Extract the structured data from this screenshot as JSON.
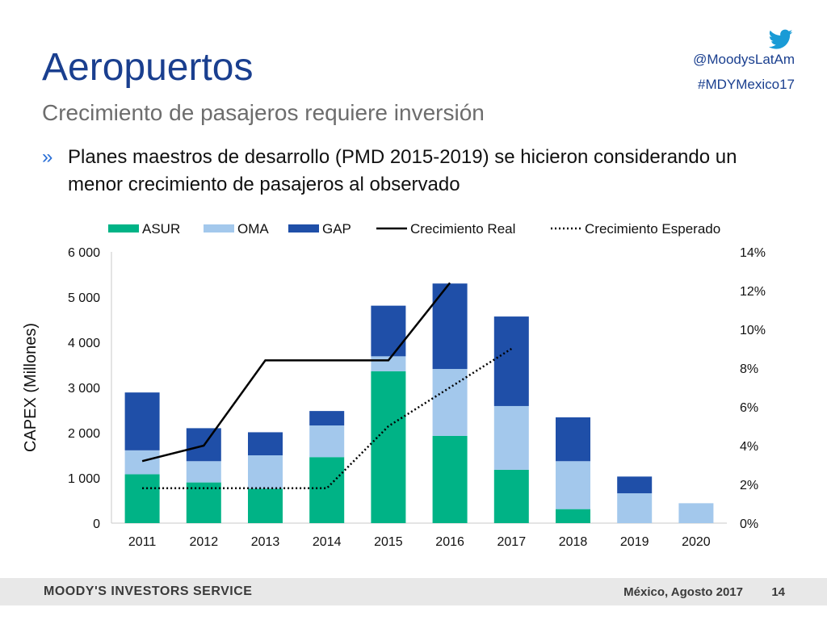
{
  "slide": {
    "title": "Aeropuertos",
    "subtitle": "Crecimiento de pasajeros requiere inversión",
    "bullet_mark": "»",
    "bullet_text": "Planes maestros de desarrollo (PMD 2015-2019) se hicieron considerando un menor crecimiento de pasajeros al observado",
    "social_handle": "@MoodysLatAm",
    "social_hashtag": "#MDYMexico17",
    "social_icon": "twitter-bird-icon"
  },
  "footer": {
    "brand": "MOODY'S INVESTORS SERVICE",
    "place_date": "México, Agosto 2017",
    "page": "14"
  },
  "colors": {
    "title": "#1a3f8f",
    "asur": "#00b386",
    "oma": "#a3c8ec",
    "gap": "#1f4fa8",
    "real_line": "#000000",
    "expected_line": "#000000"
  },
  "chart_data": {
    "type": "bar",
    "stacked": true,
    "categories": [
      "2011",
      "2012",
      "2013",
      "2014",
      "2015",
      "2016",
      "2017",
      "2018",
      "2019",
      "2020"
    ],
    "ylabel": "CAPEX (Millones)",
    "ylim": [
      0,
      6000
    ],
    "yticks": [
      "0",
      "1 000",
      "2 000",
      "3 000",
      "4 000",
      "5 000",
      "6 000"
    ],
    "y2lim": [
      0,
      14
    ],
    "y2ticks": [
      "0%",
      "2%",
      "4%",
      "6%",
      "8%",
      "10%",
      "12%",
      "14%"
    ],
    "legend_position": "top",
    "series": [
      {
        "name": "ASUR",
        "kind": "bar",
        "values": [
          1080,
          900,
          760,
          1460,
          3360,
          1930,
          1180,
          310,
          0,
          0
        ]
      },
      {
        "name": "OMA",
        "kind": "bar",
        "values": [
          530,
          470,
          740,
          700,
          330,
          1480,
          1410,
          1060,
          660,
          440
        ]
      },
      {
        "name": "GAP",
        "kind": "bar",
        "values": [
          1280,
          730,
          510,
          320,
          1120,
          1890,
          1980,
          970,
          370,
          0
        ]
      },
      {
        "name": "Crecimiento Real",
        "kind": "line",
        "axis": "right",
        "values": [
          3.2,
          4.0,
          8.4,
          8.4,
          8.4,
          12.4,
          null,
          null,
          null,
          null
        ]
      },
      {
        "name": "Crecimiento Esperado",
        "kind": "dotted-line",
        "axis": "right",
        "values": [
          1.8,
          1.8,
          1.8,
          1.8,
          5.0,
          7.0,
          9.0,
          null,
          null,
          null
        ]
      }
    ]
  }
}
